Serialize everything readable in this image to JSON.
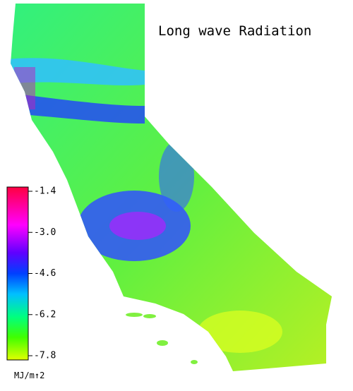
{
  "title": "Long wave Radiation",
  "colorbar": {
    "lim": [
      -7.8,
      -1.4
    ],
    "ticks": [
      -1.4,
      {
        "value": -3.0,
        "label": "-3.0"
      },
      -4.6,
      -6.2,
      -7.8
    ],
    "unit": "MJ/m↑2"
  }
}
